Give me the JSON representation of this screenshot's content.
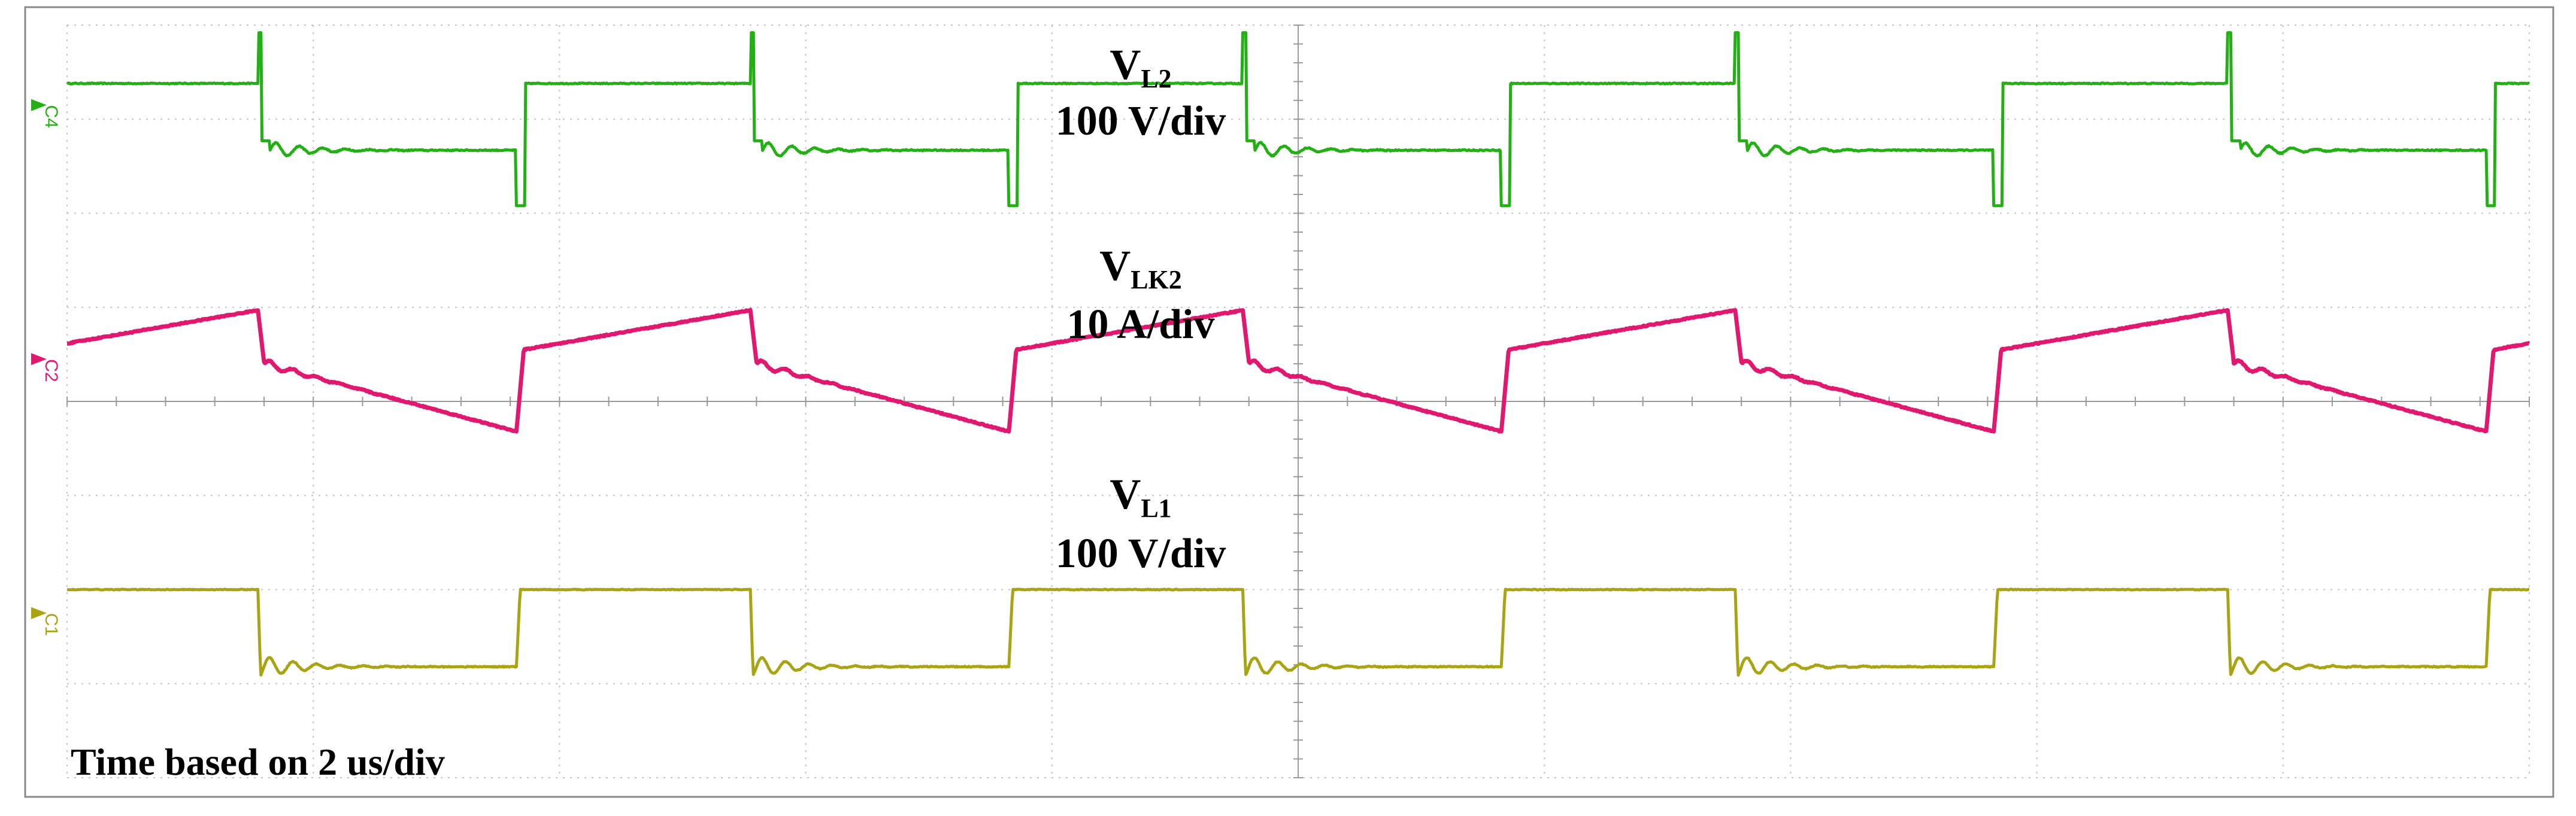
{
  "chart_data": {
    "type": "line",
    "title": "",
    "xlabel": "",
    "ylabel": "",
    "grid": true,
    "divisions": {
      "x": 10,
      "y": 8
    },
    "x_unit": "us",
    "x_per_div": 2,
    "xlim": [
      0,
      20
    ],
    "period_us": 4,
    "time_base_label": "Time based on 2 us/div",
    "series": [
      {
        "key": "vl2",
        "label_main": "V",
        "label_sub": "L2",
        "scale_label": "100 V/div",
        "channel_marker": "C4",
        "color": "#22b014",
        "unit": "div",
        "switch_times": [
          1.55,
          3.65
        ],
        "high_level": 7.38,
        "low_level": 6.67,
        "spike_high": 7.92,
        "spike_low": 6.08
      },
      {
        "key": "ilk2",
        "label_main": "V",
        "label_sub": "LK2",
        "scale_label": "10 A/div",
        "channel_marker": "C2",
        "color": "#e01870",
        "unit": "div",
        "switch_times": [
          1.55,
          3.65
        ],
        "rise_start": 4.55,
        "rise_end": 4.97,
        "fall_start": 4.42,
        "fall_end": 3.68
      },
      {
        "key": "vl1",
        "label_main": "V",
        "label_sub": "L1",
        "scale_label": "100 V/div",
        "channel_marker": "C1",
        "color": "#a8a414",
        "unit": "div",
        "switch_times": [
          1.55,
          3.65
        ],
        "high_level": 2.0,
        "low_level": 1.18
      }
    ]
  }
}
